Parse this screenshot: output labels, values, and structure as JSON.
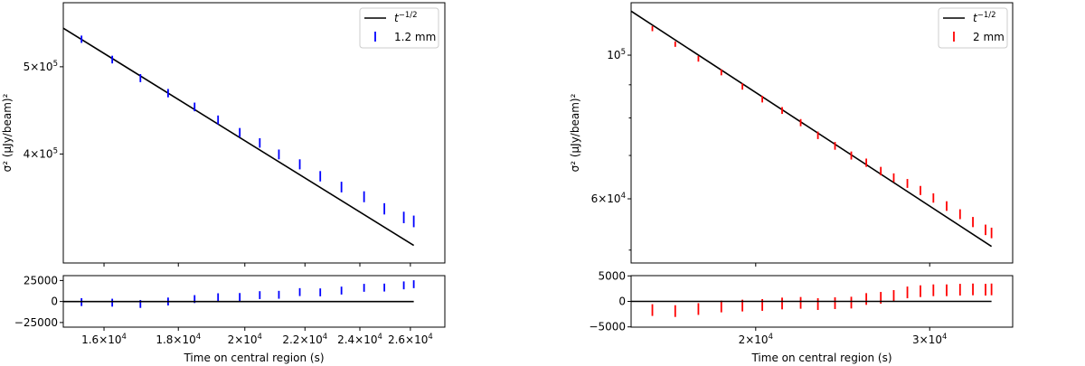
{
  "chart_data": [
    {
      "type": "scatter",
      "xscale": "log",
      "yscale": "log",
      "xlabel": "Time on central region (s)",
      "ylabel": "σ² (μJy/beam)²",
      "xlim": [
        15000,
        27460
      ],
      "ylim": [
        302700,
        589000
      ],
      "xticks": [
        {
          "v": 16000,
          "m": "1.6",
          "e": "4"
        },
        {
          "v": 18000,
          "m": "1.8",
          "e": "4"
        },
        {
          "v": 20000,
          "m": "2",
          "e": "4"
        },
        {
          "v": 22000,
          "m": "2.2",
          "e": "4"
        },
        {
          "v": 24000,
          "m": "2.4",
          "e": "4"
        },
        {
          "v": 26000,
          "m": "2.6",
          "e": "4"
        }
      ],
      "yticks": [
        {
          "v": 500000,
          "m": "5",
          "e": "5"
        },
        {
          "v": 400000,
          "m": "4",
          "e": "5"
        }
      ],
      "yminor": [],
      "legend": {
        "position": "top-right",
        "fit_label": "t",
        "fit_exp": "−1/2",
        "data_label": "1.2 mm"
      },
      "color": "#0000ff",
      "fit": {
        "name": "t^-1/2",
        "x": [
          15000,
          26140
        ],
        "y": [
          551900,
          316600
        ]
      },
      "x": [
        15440,
        16210,
        16950,
        17710,
        18470,
        19170,
        19840,
        20480,
        21110,
        21820,
        22540,
        23310,
        24160,
        24950,
        25730,
        26140
      ],
      "y": [
        536500,
        509300,
        485700,
        467400,
        451200,
        436400,
        422500,
        411500,
        399600,
        389600,
        377900,
        367600,
        358600,
        347700,
        340100,
        336700
      ],
      "yerr": 5000,
      "residuals": {
        "ylim": [
          -30500,
          30800
        ],
        "yticks": [
          {
            "v": 25000,
            "l": "25000"
          },
          {
            "v": 0,
            "l": "0"
          },
          {
            "v": -25000,
            "l": "−25000"
          }
        ],
        "values": [
          -700,
          -1400,
          -2900,
          0,
          2900,
          5100,
          5400,
          7600,
          8000,
          11200,
          10900,
          13000,
          16300,
          16600,
          19200,
          20600
        ],
        "yerr": 4700
      }
    },
    {
      "type": "scatter",
      "xscale": "log",
      "yscale": "log",
      "xlabel": "Time on central region (s)",
      "ylabel": "σ² (μJy/beam)²",
      "xlim": [
        14960,
        36400
      ],
      "ylim": [
        47760,
        120500
      ],
      "xticks": [
        {
          "v": 20000,
          "m": "2",
          "e": "4"
        },
        {
          "v": 30000,
          "m": "3",
          "e": "4"
        }
      ],
      "yticks": [
        {
          "v": 100000,
          "m": "",
          "e": "5"
        },
        {
          "v": 60000,
          "m": "6",
          "e": "4"
        }
      ],
      "yminor": [
        90000,
        80000,
        70000,
        50000
      ],
      "legend": {
        "position": "top-right",
        "fit_label": "t",
        "fit_exp": "−1/2",
        "data_label": "2 mm"
      },
      "color": "#ff0000",
      "fit": {
        "name": "t^-1/2",
        "x": [
          14960,
          34650
        ],
        "y": [
          116950,
          50650
        ]
      },
      "x": [
        15720,
        16580,
        17500,
        18460,
        19390,
        20310,
        21270,
        22210,
        23120,
        24060,
        24990,
        25880,
        26770,
        27590,
        28480,
        29360,
        30260,
        31210,
        32200,
        33180,
        34170,
        34650
      ],
      "y": [
        109900,
        104000,
        98720,
        94080,
        89460,
        85520,
        82140,
        78670,
        75200,
        72440,
        69990,
        68230,
        66220,
        64680,
        63380,
        61810,
        60180,
        58480,
        56810,
        55250,
        53740,
        53150
      ],
      "yerr": 1000,
      "residuals": {
        "ylim": [
          -5050,
          5050
        ],
        "yticks": [
          {
            "v": 5000,
            "l": "5000"
          },
          {
            "v": 0,
            "l": "0"
          },
          {
            "v": -5000,
            "l": "−5000"
          }
        ],
        "values": [
          -1700,
          -1900,
          -1500,
          -1000,
          -820,
          -700,
          -410,
          -290,
          -530,
          -350,
          -240,
          470,
          700,
          1060,
          1760,
          2000,
          2180,
          2180,
          2290,
          2350,
          2290,
          2350
        ],
        "yerr": 1150
      }
    }
  ]
}
